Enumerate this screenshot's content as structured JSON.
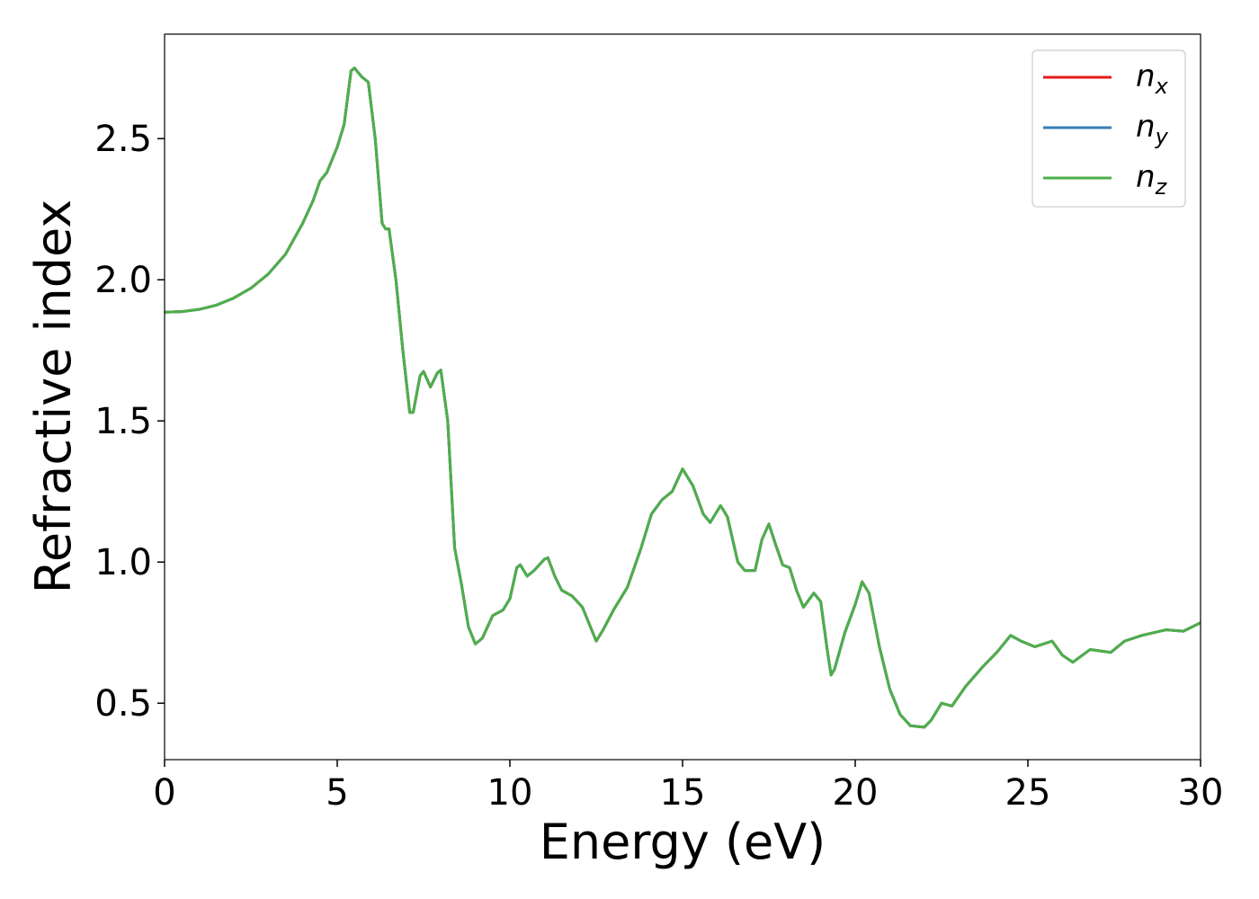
{
  "chart_data": {
    "type": "line",
    "xlabel": "Energy (eV)",
    "ylabel": "Refractive index",
    "x": [
      0,
      0.5,
      1,
      1.5,
      2,
      2.5,
      3,
      3.5,
      4,
      4.3,
      4.5,
      4.7,
      5,
      5.2,
      5.4,
      5.5,
      5.7,
      5.9,
      6.1,
      6.3,
      6.4,
      6.5,
      6.7,
      6.9,
      7.1,
      7.2,
      7.4,
      7.5,
      7.7,
      7.9,
      8.0,
      8.2,
      8.4,
      8.6,
      8.8,
      9.0,
      9.2,
      9.5,
      9.8,
      10.0,
      10.2,
      10.3,
      10.5,
      10.7,
      11.0,
      11.1,
      11.3,
      11.5,
      11.8,
      12.1,
      12.3,
      12.5,
      12.7,
      13.0,
      13.4,
      13.8,
      14.1,
      14.4,
      14.7,
      15.0,
      15.3,
      15.6,
      15.8,
      16.1,
      16.3,
      16.6,
      16.8,
      17.1,
      17.3,
      17.5,
      17.7,
      17.9,
      18.1,
      18.3,
      18.5,
      18.8,
      19.0,
      19.2,
      19.3,
      19.4,
      19.7,
      20.0,
      20.2,
      20.4,
      20.7,
      21.0,
      21.3,
      21.6,
      22.0,
      22.2,
      22.5,
      22.8,
      23.2,
      23.7,
      24.1,
      24.5,
      24.8,
      25.2,
      25.7,
      26.0,
      26.3,
      26.8,
      27.4,
      27.8,
      28.3,
      29.0,
      29.5,
      30.0
    ],
    "series": [
      {
        "name": "nx",
        "color": "#e41a1c",
        "values": [
          1.885,
          1.887,
          1.895,
          1.91,
          1.935,
          1.97,
          2.02,
          2.09,
          2.2,
          2.28,
          2.35,
          2.38,
          2.47,
          2.55,
          2.74,
          2.75,
          2.72,
          2.7,
          2.5,
          2.2,
          2.18,
          2.18,
          2.0,
          1.75,
          1.53,
          1.53,
          1.66,
          1.675,
          1.62,
          1.67,
          1.68,
          1.5,
          1.05,
          0.92,
          0.77,
          0.71,
          0.73,
          0.81,
          0.83,
          0.87,
          0.98,
          0.99,
          0.95,
          0.97,
          1.01,
          1.015,
          0.95,
          0.9,
          0.88,
          0.84,
          0.78,
          0.72,
          0.76,
          0.83,
          0.91,
          1.05,
          1.17,
          1.22,
          1.25,
          1.33,
          1.27,
          1.17,
          1.14,
          1.2,
          1.16,
          1.0,
          0.97,
          0.97,
          1.08,
          1.135,
          1.06,
          0.99,
          0.98,
          0.9,
          0.84,
          0.89,
          0.86,
          0.68,
          0.6,
          0.62,
          0.75,
          0.85,
          0.93,
          0.89,
          0.7,
          0.55,
          0.46,
          0.42,
          0.415,
          0.44,
          0.5,
          0.49,
          0.56,
          0.63,
          0.68,
          0.74,
          0.72,
          0.7,
          0.72,
          0.67,
          0.645,
          0.69,
          0.68,
          0.72,
          0.74,
          0.76,
          0.755,
          0.785
        ]
      },
      {
        "name": "ny",
        "color": "#377eb8",
        "values": [
          1.885,
          1.887,
          1.895,
          1.91,
          1.935,
          1.97,
          2.02,
          2.09,
          2.2,
          2.28,
          2.35,
          2.38,
          2.47,
          2.55,
          2.74,
          2.75,
          2.72,
          2.7,
          2.5,
          2.2,
          2.18,
          2.18,
          2.0,
          1.75,
          1.53,
          1.53,
          1.66,
          1.675,
          1.62,
          1.67,
          1.68,
          1.5,
          1.05,
          0.92,
          0.77,
          0.71,
          0.73,
          0.81,
          0.83,
          0.87,
          0.98,
          0.99,
          0.95,
          0.97,
          1.01,
          1.015,
          0.95,
          0.9,
          0.88,
          0.84,
          0.78,
          0.72,
          0.76,
          0.83,
          0.91,
          1.05,
          1.17,
          1.22,
          1.25,
          1.33,
          1.27,
          1.17,
          1.14,
          1.2,
          1.16,
          1.0,
          0.97,
          0.97,
          1.08,
          1.135,
          1.06,
          0.99,
          0.98,
          0.9,
          0.84,
          0.89,
          0.86,
          0.68,
          0.6,
          0.62,
          0.75,
          0.85,
          0.93,
          0.89,
          0.7,
          0.55,
          0.46,
          0.42,
          0.415,
          0.44,
          0.5,
          0.49,
          0.56,
          0.63,
          0.68,
          0.74,
          0.72,
          0.7,
          0.72,
          0.67,
          0.645,
          0.69,
          0.68,
          0.72,
          0.74,
          0.76,
          0.755,
          0.785
        ]
      },
      {
        "name": "nz",
        "color": "#4daf4a",
        "values": [
          1.885,
          1.887,
          1.895,
          1.91,
          1.935,
          1.97,
          2.02,
          2.09,
          2.2,
          2.28,
          2.35,
          2.38,
          2.47,
          2.55,
          2.74,
          2.75,
          2.72,
          2.7,
          2.5,
          2.2,
          2.18,
          2.18,
          2.0,
          1.75,
          1.53,
          1.53,
          1.66,
          1.675,
          1.62,
          1.67,
          1.68,
          1.5,
          1.05,
          0.92,
          0.77,
          0.71,
          0.73,
          0.81,
          0.83,
          0.87,
          0.98,
          0.99,
          0.95,
          0.97,
          1.01,
          1.015,
          0.95,
          0.9,
          0.88,
          0.84,
          0.78,
          0.72,
          0.76,
          0.83,
          0.91,
          1.05,
          1.17,
          1.22,
          1.25,
          1.33,
          1.27,
          1.17,
          1.14,
          1.2,
          1.16,
          1.0,
          0.97,
          0.97,
          1.08,
          1.135,
          1.06,
          0.99,
          0.98,
          0.9,
          0.84,
          0.89,
          0.86,
          0.68,
          0.6,
          0.62,
          0.75,
          0.85,
          0.93,
          0.89,
          0.7,
          0.55,
          0.46,
          0.42,
          0.415,
          0.44,
          0.5,
          0.49,
          0.56,
          0.63,
          0.68,
          0.74,
          0.72,
          0.7,
          0.72,
          0.67,
          0.645,
          0.69,
          0.68,
          0.72,
          0.74,
          0.76,
          0.755,
          0.785
        ]
      }
    ],
    "xlim": [
      0,
      30
    ],
    "xticks": [
      0,
      5,
      10,
      15,
      20,
      25,
      30
    ],
    "ylim": [
      0.3,
      2.87
    ],
    "yticks": [
      0.5,
      {
        "value": 1.0,
        "label": "1.0"
      },
      1.5,
      {
        "value": 2.0,
        "label": "2.0"
      },
      2.5
    ],
    "legend": "upper right"
  }
}
